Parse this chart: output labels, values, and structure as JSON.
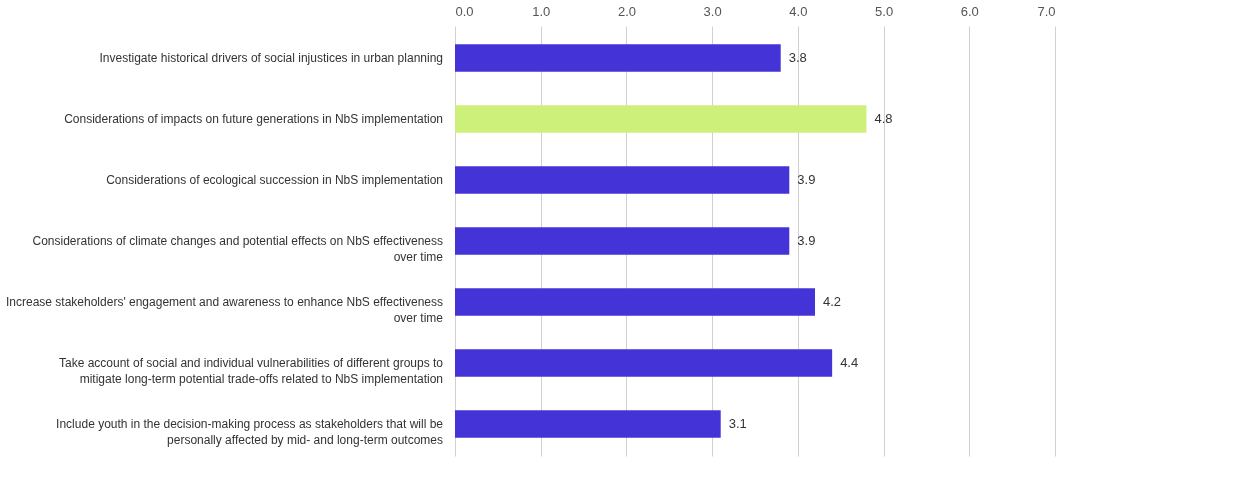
{
  "chart_data": {
    "type": "bar",
    "orientation": "horizontal",
    "categories": [
      "Investigate historical drivers of social injustices in urban planning",
      "Considerations of impacts on future generations in NbS implementation",
      "Considerations of ecological succession in NbS implementation",
      "Considerations of climate changes and potential effects on NbS effectiveness over time",
      "Increase stakeholders' engagement and awareness to enhance NbS effectiveness over time",
      "Take account of social and individual vulnerabilities of different groups to mitigate long-term potential trade-offs related to NbS implementation",
      "Include youth in the decision-making process as stakeholders that will be personally affected by mid- and long-term outcomes"
    ],
    "values": [
      3.8,
      4.8,
      3.9,
      3.9,
      4.2,
      4.4,
      3.1
    ],
    "colors": [
      "#4433d6",
      "#ccf07a",
      "#4433d6",
      "#4433d6",
      "#4433d6",
      "#4433d6",
      "#4433d6"
    ],
    "xlim": [
      0,
      7
    ],
    "xticks": [
      {
        "value": 0,
        "label": "0.0"
      },
      {
        "value": 1,
        "label": "1.0"
      },
      {
        "value": 2,
        "label": "2.0"
      },
      {
        "value": 3,
        "label": "3.0"
      },
      {
        "value": 4,
        "label": "4.0"
      },
      {
        "value": 5,
        "label": "5.0"
      },
      {
        "value": 6,
        "label": "6.0"
      },
      {
        "value": 7,
        "label": "7.0"
      }
    ],
    "grid": "x",
    "data_labels": true
  }
}
